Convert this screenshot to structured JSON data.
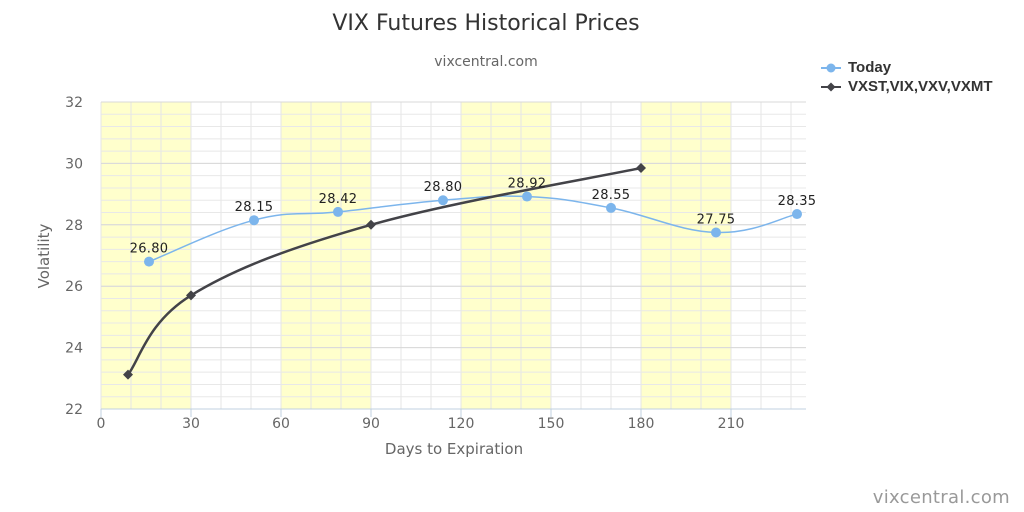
{
  "credit": "vixcentral.com",
  "chart_data": {
    "type": "line",
    "title": "VIX Futures Historical Prices",
    "subtitle": "vixcentral.com",
    "xlabel": "Days to Expiration",
    "ylabel": "Volatility",
    "xlim": [
      0,
      235
    ],
    "ylim": [
      22,
      32
    ],
    "xticks": [
      0,
      30,
      60,
      90,
      120,
      150,
      180,
      210
    ],
    "yticks": [
      22,
      24,
      26,
      28,
      30,
      32
    ],
    "grid": true,
    "bands": [
      [
        0,
        30
      ],
      [
        60,
        90
      ],
      [
        120,
        150
      ],
      [
        180,
        210
      ]
    ],
    "band_color": "#ffffcc",
    "legend_position": "top-right",
    "series": [
      {
        "name": "Today",
        "color": "#7cb5ec",
        "marker": "circle",
        "x": [
          16,
          51,
          79,
          114,
          142,
          170,
          205,
          232
        ],
        "y": [
          26.8,
          28.15,
          28.42,
          28.8,
          28.92,
          28.55,
          27.75,
          28.35
        ],
        "labels": [
          "26.80",
          "28.15",
          "28.42",
          "28.80",
          "28.92",
          "28.55",
          "27.75",
          "28.35"
        ]
      },
      {
        "name": "VXST,VIX,VXV,VXMT",
        "color": "#434348",
        "marker": "diamond",
        "x": [
          9,
          30,
          90,
          180
        ],
        "y": [
          23.12,
          25.7,
          28.0,
          29.85
        ]
      }
    ]
  }
}
